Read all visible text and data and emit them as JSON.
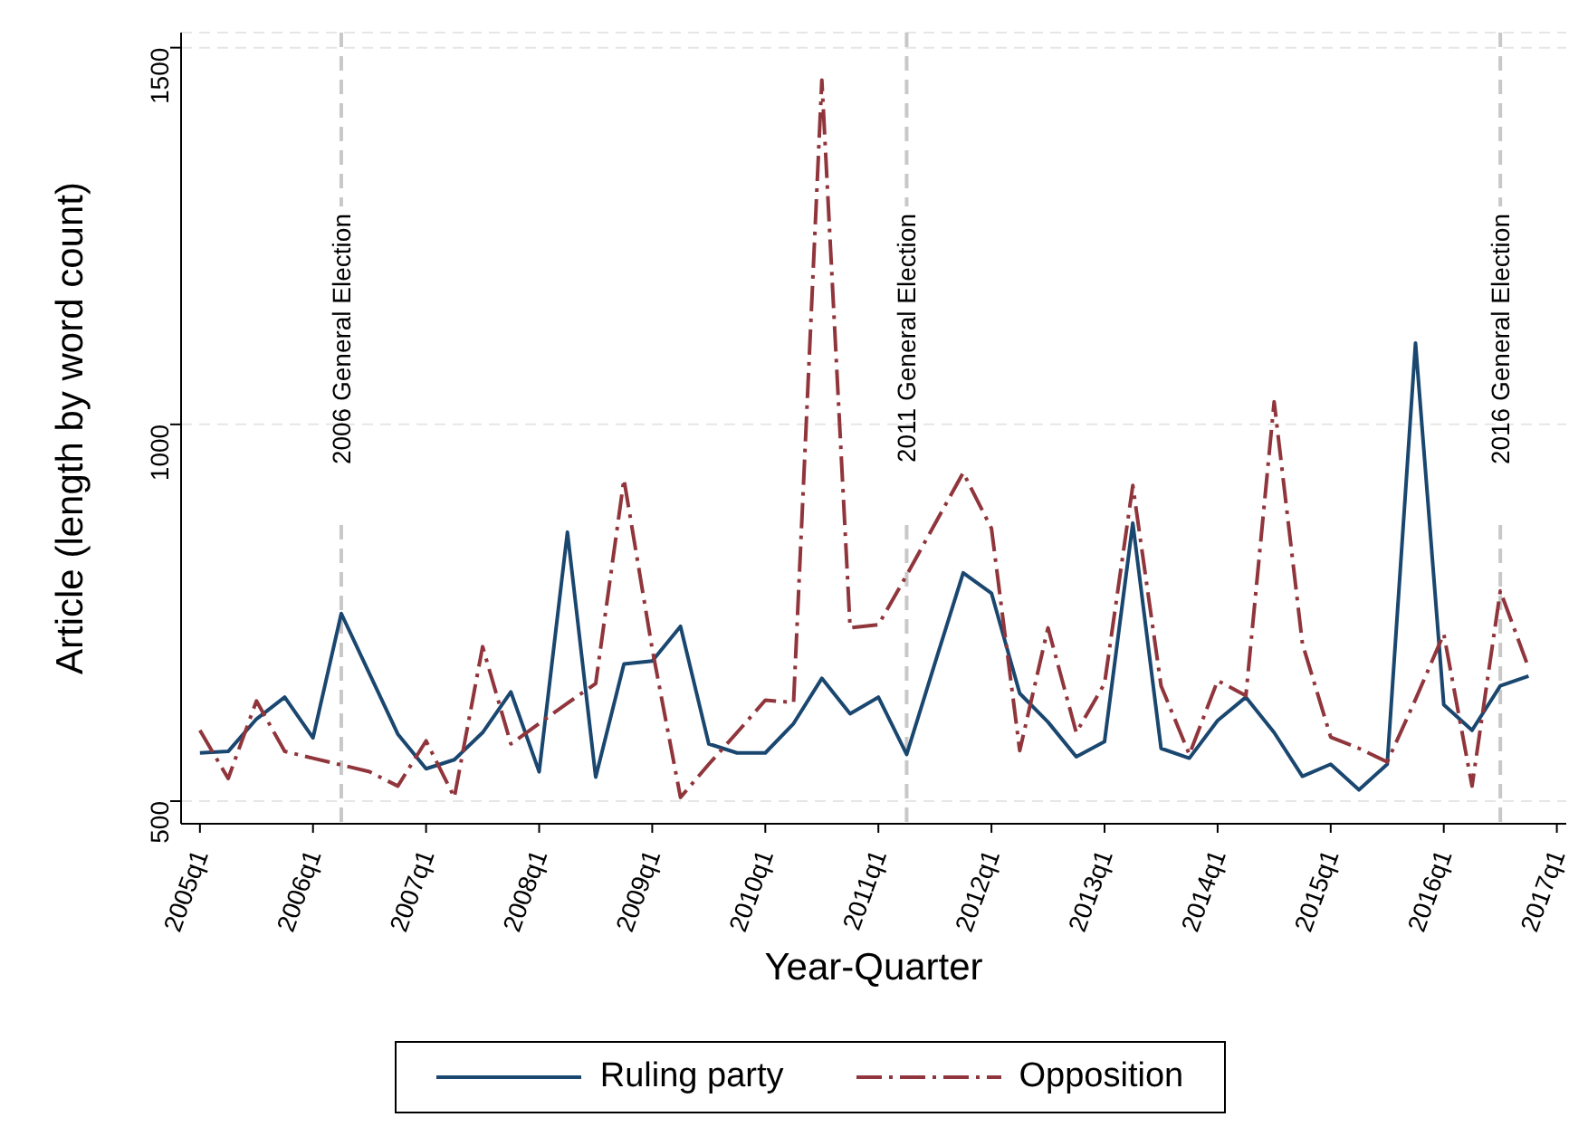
{
  "chart_data": {
    "type": "line",
    "xlabel": "Year-Quarter",
    "ylabel": "Article (length by word count)",
    "x": [
      "2005-01",
      "2005-04",
      "2005-07",
      "2005-10",
      "2006-01",
      "2006-04",
      "2006-07",
      "2006-10",
      "2007-01",
      "2007-04",
      "2007-07",
      "2007-10",
      "2008-01",
      "2008-04",
      "2008-07",
      "2008-10",
      "2009-01",
      "2009-04",
      "2009-07",
      "2009-10",
      "2010-01",
      "2010-04",
      "2010-07",
      "2010-10",
      "2011-01",
      "2011-04",
      "2011-07",
      "2011-10",
      "2012-01",
      "2012-04",
      "2012-07",
      "2012-10",
      "2013-01",
      "2013-04",
      "2013-07",
      "2013-10",
      "2014-01",
      "2014-04",
      "2014-07",
      "2014-10",
      "2015-01",
      "2015-04",
      "2015-07",
      "2015-10",
      "2016-01",
      "2016-04",
      "2016-07",
      "2016-10"
    ],
    "series": [
      {
        "name": "Ruling party",
        "color": "#1a476f",
        "line_style": "solid",
        "values": [
          564,
          566,
          609,
          638,
          584,
          749,
          669,
          589,
          543,
          555,
          591,
          645,
          539,
          857,
          532,
          682,
          686,
          732,
          576,
          564,
          564,
          603,
          663,
          616,
          638,
          562,
          683,
          803,
          776,
          643,
          605,
          559,
          579,
          869,
          570,
          557,
          607,
          638,
          591,
          533,
          549,
          515,
          549,
          1108,
          628,
          594,
          653,
          666
        ]
      },
      {
        "name": "Opposition",
        "color": "#90353b",
        "line_style": "dashed",
        "values": [
          594,
          530,
          633,
          566,
          557,
          548,
          539,
          520,
          580,
          505,
          705,
          576,
          603,
          630,
          656,
          927,
          702,
          505,
          549,
          591,
          634,
          631,
          1457,
          730,
          734,
          800,
          868,
          936,
          862,
          567,
          730,
          591,
          656,
          919,
          653,
          562,
          660,
          640,
          1030,
          709,
          585,
          570,
          552,
          635,
          722,
          520,
          779,
          677
        ]
      }
    ],
    "xlim": [
      "2004-11",
      "2017-02"
    ],
    "xticks": [
      {
        "value": "2005-01",
        "label": "2005q1"
      },
      {
        "value": "2006-01",
        "label": "2006q1"
      },
      {
        "value": "2007-01",
        "label": "2007q1"
      },
      {
        "value": "2008-01",
        "label": "2008q1"
      },
      {
        "value": "2009-01",
        "label": "2009q1"
      },
      {
        "value": "2010-01",
        "label": "2010q1"
      },
      {
        "value": "2011-01",
        "label": "2011q1"
      },
      {
        "value": "2012-01",
        "label": "2012q1"
      },
      {
        "value": "2013-01",
        "label": "2013q1"
      },
      {
        "value": "2014-01",
        "label": "2014q1"
      },
      {
        "value": "2015-01",
        "label": "2015q1"
      },
      {
        "value": "2016-01",
        "label": "2016q1"
      },
      {
        "value": "2017-01",
        "label": "2017q1"
      }
    ],
    "ylim": [
      470,
      1520
    ],
    "yticks": [
      500,
      1000,
      1500
    ],
    "ref_lines": [
      {
        "axis": "x",
        "value": "2006-04",
        "label": "2006 General Election",
        "color": "#c8c8c8",
        "line_style": "dashed"
      },
      {
        "axis": "x",
        "value": "2011-04",
        "label": "2011 General Election",
        "color": "#c8c8c8",
        "line_style": "dashed"
      },
      {
        "axis": "x",
        "value": "2016-07",
        "label": "2016 General Election",
        "color": "#c8c8c8",
        "line_style": "dashed"
      }
    ],
    "grid": "y",
    "legend": "bottom",
    "marker": "none"
  }
}
